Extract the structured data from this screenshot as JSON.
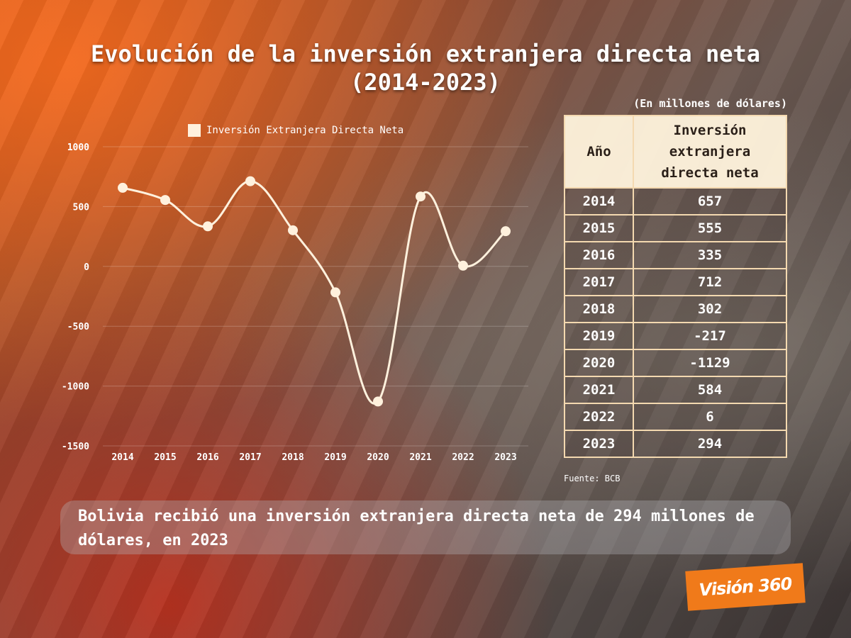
{
  "title_line1": "Evolución de la inversión extranjera directa neta",
  "title_line2": "(2014-2023)",
  "chart_data": {
    "type": "line",
    "legend": "Inversión Extranjera Directa Neta",
    "legend_position": "top-center",
    "grid": true,
    "x": [
      "2014",
      "2015",
      "2016",
      "2017",
      "2018",
      "2019",
      "2020",
      "2021",
      "2022",
      "2023"
    ],
    "y_ticks": [
      "1000",
      "500",
      "0",
      "-500",
      "-1000",
      "-1500"
    ],
    "ylim": [
      -1500,
      1000
    ],
    "series": [
      {
        "name": "Inversión Extranjera Directa Neta",
        "values": [
          657,
          555,
          335,
          712,
          302,
          -217,
          -1129,
          584,
          6,
          294
        ]
      }
    ],
    "line_color": "#fff1dd"
  },
  "table": {
    "units": "(En millones de dólares)",
    "header_year": "Año",
    "header_value": "Inversión extranjera directa neta",
    "rows": [
      {
        "year": "2014",
        "value": "657"
      },
      {
        "year": "2015",
        "value": "555"
      },
      {
        "year": "2016",
        "value": "335"
      },
      {
        "year": "2017",
        "value": "712"
      },
      {
        "year": "2018",
        "value": "302"
      },
      {
        "year": "2019",
        "value": "-217"
      },
      {
        "year": "2020",
        "value": "-1129"
      },
      {
        "year": "2021",
        "value": "584"
      },
      {
        "year": "2022",
        "value": "6"
      },
      {
        "year": "2023",
        "value": "294"
      }
    ]
  },
  "source": "Fuente: BCB",
  "banner": "Bolivia recibió una inversión extranjera directa neta de 294 millones de dólares, en 2023",
  "logo": "Visión 360",
  "accent_color": "#f07a1a"
}
